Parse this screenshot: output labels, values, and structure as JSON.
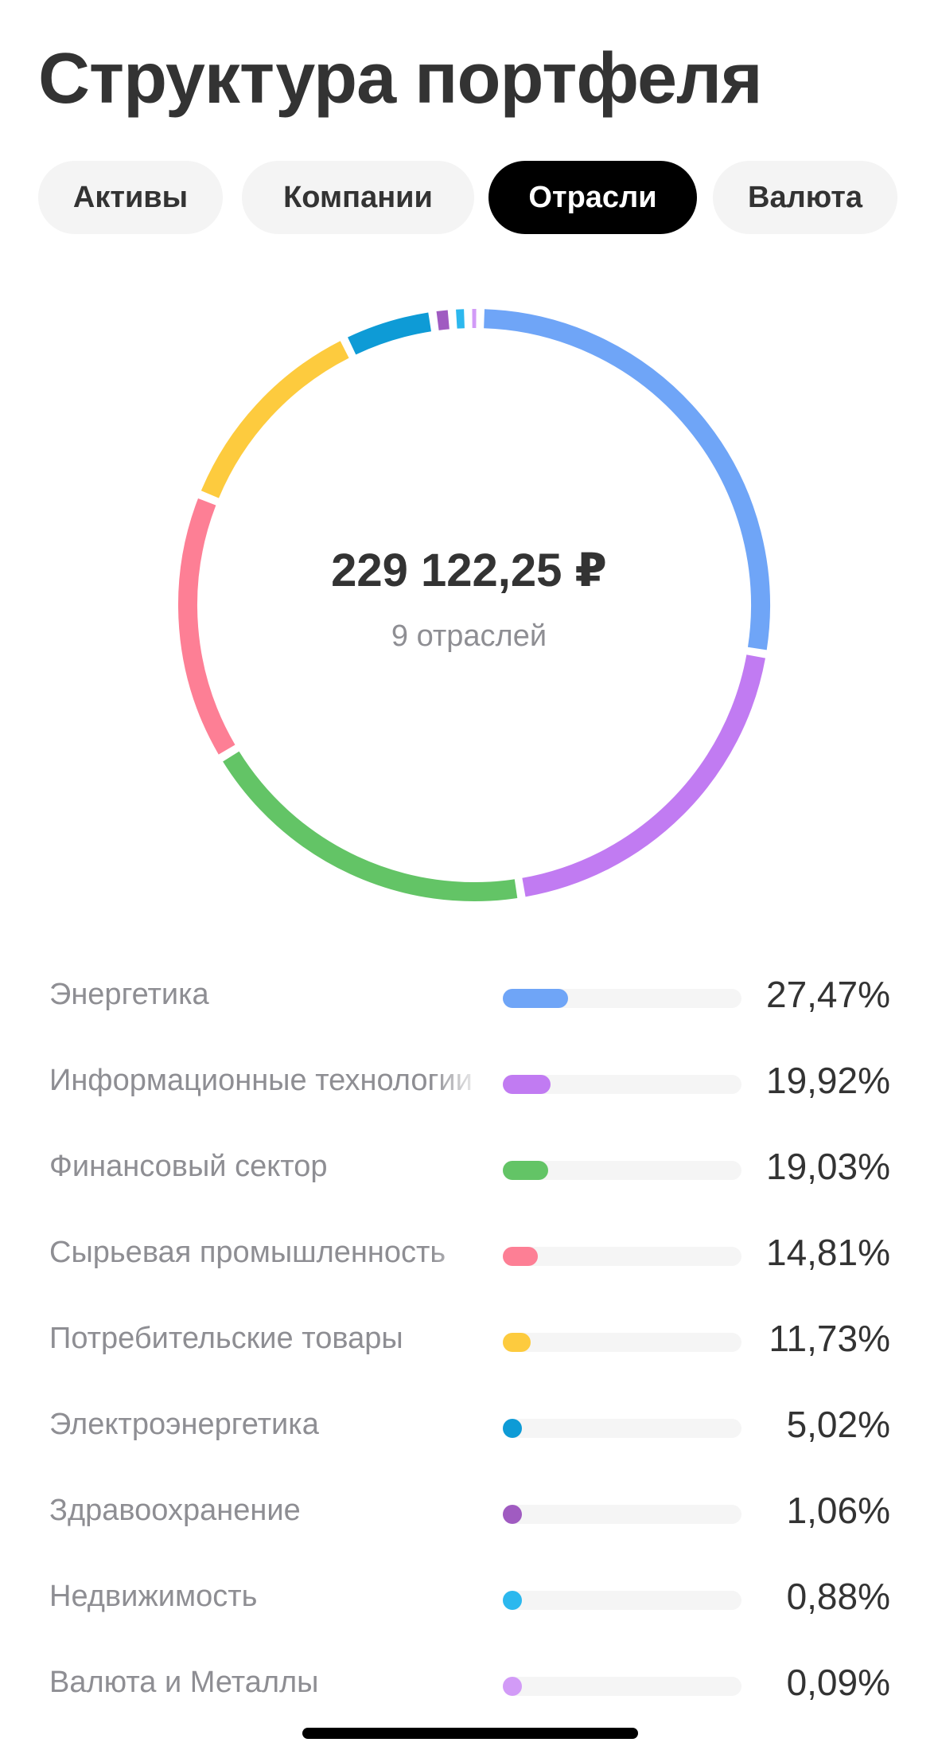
{
  "page_title": "Структура портфеля",
  "tabs": [
    {
      "label": "Активы",
      "active": false
    },
    {
      "label": "Компании",
      "active": false
    },
    {
      "label": "Отрасли",
      "active": true
    },
    {
      "label": "Валюта",
      "active": false
    }
  ],
  "summary": {
    "total": "229 122,25 ₽",
    "count_label": "9 отраслей"
  },
  "chart_data": {
    "type": "pie",
    "categories": [
      "Энергетика",
      "Информационные технологии",
      "Финансовый сектор",
      "Сырьевая промышленность",
      "Потребительские товары",
      "Электроэнергетика",
      "Здравоохранение",
      "Недвижимость",
      "Валюта и Металлы"
    ],
    "values": [
      27.47,
      19.92,
      19.03,
      14.81,
      11.73,
      5.02,
      1.06,
      0.88,
      0.09
    ],
    "colors": [
      "#6fa5f7",
      "#c17bf2",
      "#63c466",
      "#fd7f95",
      "#fdcb3e",
      "#0e9bd6",
      "#a05bc1",
      "#2cb8ee",
      "#d29bf7"
    ]
  },
  "legend": [
    {
      "label": "Энергетика",
      "value": "27,47%",
      "share": 0.2747,
      "color": "#6fa5f7"
    },
    {
      "label": "Информационные технологии",
      "value": "19,92%",
      "share": 0.1992,
      "color": "#c17bf2"
    },
    {
      "label": "Финансовый сектор",
      "value": "19,03%",
      "share": 0.1903,
      "color": "#63c466"
    },
    {
      "label": "Сырьевая промышленность",
      "value": "14,81%",
      "share": 0.1481,
      "color": "#fd7f95"
    },
    {
      "label": "Потребительские товары",
      "value": "11,73%",
      "share": 0.1173,
      "color": "#fdcb3e"
    },
    {
      "label": "Электроэнергетика",
      "value": "5,02%",
      "share": 0.0502,
      "color": "#0e9bd6"
    },
    {
      "label": "Здравоохранение",
      "value": "1,06%",
      "share": 0.0106,
      "color": "#a05bc1"
    },
    {
      "label": "Недвижимость",
      "value": "0,88%",
      "share": 0.0088,
      "color": "#2cb8ee"
    },
    {
      "label": "Валюта и Металлы",
      "value": "0,09%",
      "share": 0.0009,
      "color": "#d29bf7"
    }
  ]
}
